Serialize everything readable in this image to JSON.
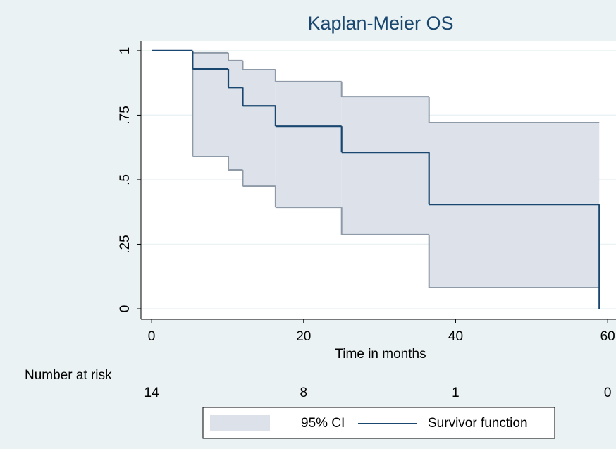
{
  "chart_data": {
    "type": "km",
    "title": "Kaplan-Meier OS",
    "x_label": "Time in months",
    "x": [
      0,
      5.4,
      10.1,
      12.0,
      16.3,
      25.0,
      36.5,
      58.9
    ],
    "series": [
      {
        "name": "95% CI",
        "color": "#dde2ea",
        "line_color": "#8e9aa8",
        "lower": [
          null,
          0.59,
          0.538,
          0.475,
          0.393,
          0.287,
          0.082,
          null
        ],
        "upper": [
          null,
          0.992,
          0.962,
          0.926,
          0.88,
          0.822,
          0.721,
          null
        ]
      },
      {
        "name": "Survivor function",
        "color": "#1a476f",
        "values": [
          1,
          0.929,
          0.857,
          0.786,
          0.707,
          0.606,
          0.404,
          0
        ]
      }
    ],
    "xlim": [
      -1.4,
      61.1
    ],
    "xticks": [
      0,
      20,
      40,
      60
    ],
    "ylim": [
      -0.041,
      1.038
    ],
    "yticks": [
      0,
      {
        "value": 0.25,
        "label": ".25"
      },
      {
        "value": 0.5,
        "label": ".5"
      },
      {
        "value": 0.75,
        "label": ".75"
      },
      1
    ],
    "grid": true,
    "risk_table": {
      "label": "Number at risk",
      "times": [
        0,
        20,
        40,
        60
      ],
      "counts": [
        14,
        8,
        1,
        0
      ]
    }
  }
}
